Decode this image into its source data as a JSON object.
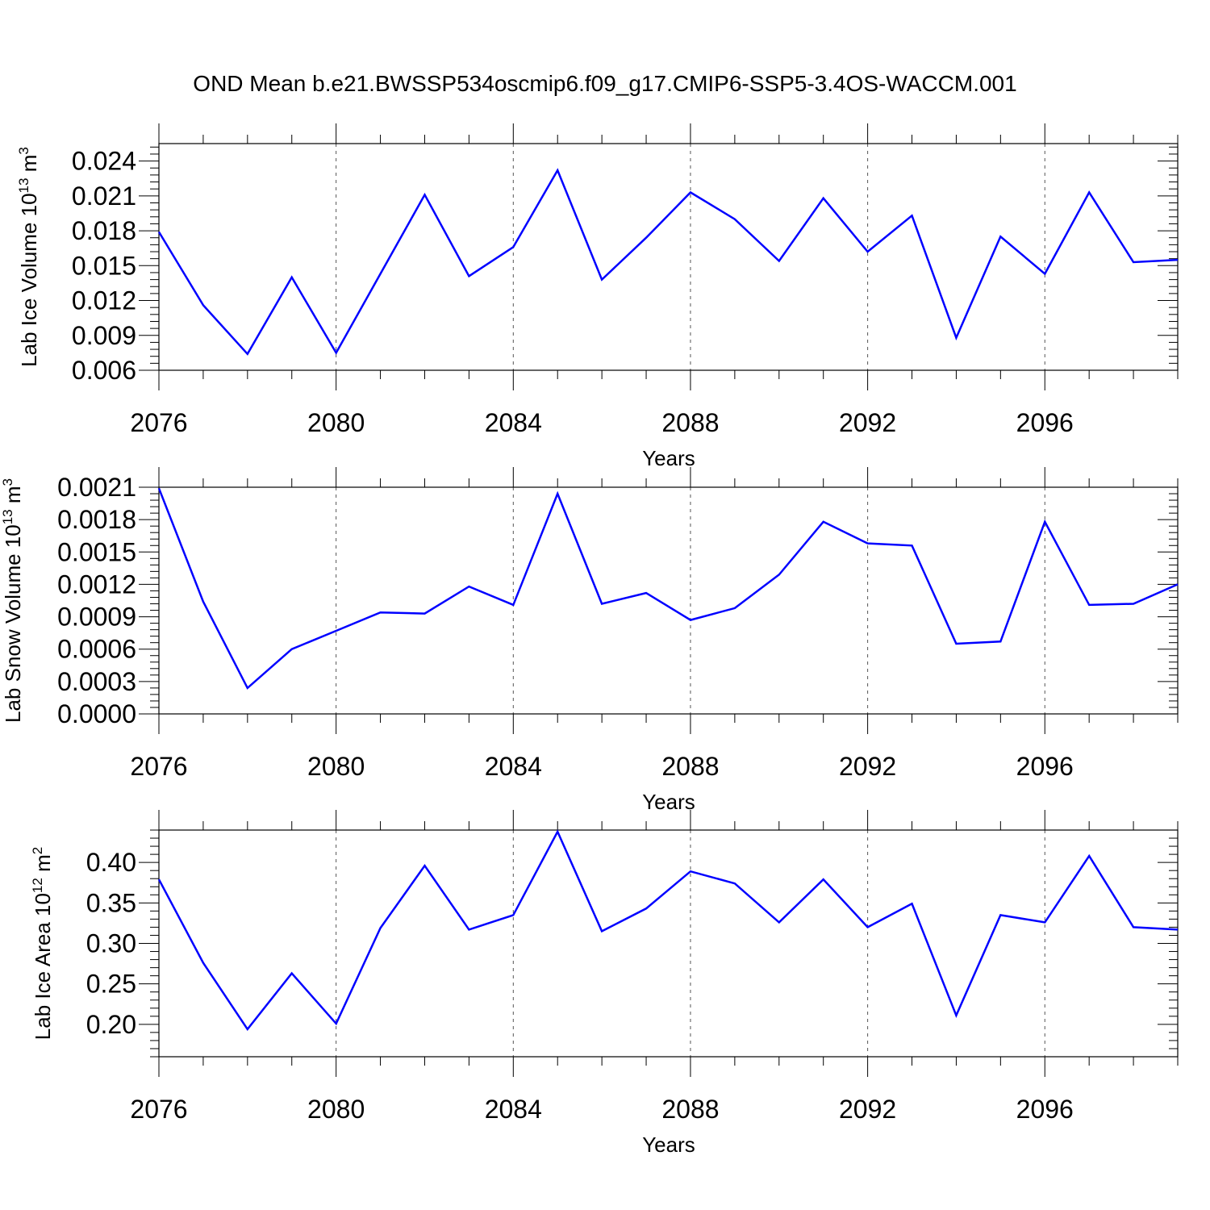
{
  "title": "OND Mean b.e21.BWSSP534oscmip6.f09_g17.CMIP6-SSP5-3.4OS-WACCM.001",
  "colors": {
    "line": "#0000ff",
    "axis": "#000000",
    "grid": "#555555"
  },
  "chart_data": [
    {
      "type": "line",
      "ylabel": "Lab Ice Volume 10^13 m^3",
      "ylabel_parts": {
        "base": "Lab Ice Volume 10",
        "exp1": "13",
        "mid": " m",
        "exp2": "3"
      },
      "xlabel": "Years",
      "xlim": [
        2076,
        2099
      ],
      "ylim": [
        0.006,
        0.0255
      ],
      "xticks": [
        2076,
        2080,
        2084,
        2088,
        2092,
        2096
      ],
      "xtick_labels": [
        "2076",
        "2080",
        "2084",
        "2088",
        "2092",
        "2096"
      ],
      "yticks": [
        0.006,
        0.009,
        0.012,
        0.015,
        0.018,
        0.021,
        0.024
      ],
      "ytick_labels": [
        "0.006",
        "0.009",
        "0.012",
        "0.015",
        "0.018",
        "0.021",
        "0.024"
      ],
      "grid": "vertical dashed at major x ticks",
      "x": [
        2076,
        2077,
        2078,
        2079,
        2080,
        2081,
        2082,
        2083,
        2084,
        2085,
        2086,
        2087,
        2088,
        2089,
        2090,
        2091,
        2092,
        2093,
        2094,
        2095,
        2096,
        2097,
        2098,
        2099
      ],
      "series": [
        {
          "values": [
            0.0179,
            0.0116,
            0.0074,
            0.014,
            0.0075,
            0.0143,
            0.0211,
            0.0141,
            0.0166,
            0.0232,
            0.0138,
            0.0174,
            0.0213,
            0.019,
            0.0154,
            0.0208,
            0.0162,
            0.0193,
            0.0088,
            0.0175,
            0.0143,
            0.0213,
            0.0153,
            0.0155
          ]
        }
      ]
    },
    {
      "type": "line",
      "ylabel": "Lab Snow Volume 10^13 m^3",
      "ylabel_parts": {
        "base": "Lab Snow Volume 10",
        "exp1": "13",
        "mid": " m",
        "exp2": "3"
      },
      "xlabel": "Years",
      "xlim": [
        2076,
        2099
      ],
      "ylim": [
        0.0,
        0.0021
      ],
      "xticks": [
        2076,
        2080,
        2084,
        2088,
        2092,
        2096
      ],
      "xtick_labels": [
        "2076",
        "2080",
        "2084",
        "2088",
        "2092",
        "2096"
      ],
      "yticks": [
        0.0,
        0.0003,
        0.0006,
        0.0009,
        0.0012,
        0.0015,
        0.0018,
        0.0021
      ],
      "ytick_labels": [
        "0.0000",
        "0.0003",
        "0.0006",
        "0.0009",
        "0.0012",
        "0.0015",
        "0.0018",
        "0.0021"
      ],
      "grid": "vertical dashed at major x ticks",
      "x": [
        2076,
        2077,
        2078,
        2079,
        2080,
        2081,
        2082,
        2083,
        2084,
        2085,
        2086,
        2087,
        2088,
        2089,
        2090,
        2091,
        2092,
        2093,
        2094,
        2095,
        2096,
        2097,
        2098,
        2099
      ],
      "series": [
        {
          "values": [
            0.00209,
            0.00104,
            0.00024,
            0.0006,
            0.00077,
            0.00094,
            0.00093,
            0.00118,
            0.00101,
            0.00204,
            0.00102,
            0.00112,
            0.00087,
            0.00098,
            0.00129,
            0.00178,
            0.00158,
            0.00156,
            0.00065,
            0.00067,
            0.00178,
            0.00101,
            0.00102,
            0.0012
          ]
        }
      ]
    },
    {
      "type": "line",
      "ylabel": "Lab Ice Area 10^12 m^2",
      "ylabel_parts": {
        "base": "Lab Ice Area 10",
        "exp1": "12",
        "mid": " m",
        "exp2": "2"
      },
      "xlabel": "Years",
      "xlim": [
        2076,
        2099
      ],
      "ylim": [
        0.16,
        0.44
      ],
      "xticks": [
        2076,
        2080,
        2084,
        2088,
        2092,
        2096
      ],
      "xtick_labels": [
        "2076",
        "2080",
        "2084",
        "2088",
        "2092",
        "2096"
      ],
      "yticks": [
        0.2,
        0.25,
        0.3,
        0.35,
        0.4
      ],
      "ytick_labels": [
        "0.20",
        "0.25",
        "0.30",
        "0.35",
        "0.40"
      ],
      "grid": "vertical dashed at major x ticks",
      "x": [
        2076,
        2077,
        2078,
        2079,
        2080,
        2081,
        2082,
        2083,
        2084,
        2085,
        2086,
        2087,
        2088,
        2089,
        2090,
        2091,
        2092,
        2093,
        2094,
        2095,
        2096,
        2097,
        2098,
        2099
      ],
      "series": [
        {
          "values": [
            0.379,
            0.276,
            0.194,
            0.263,
            0.201,
            0.319,
            0.396,
            0.317,
            0.335,
            0.438,
            0.315,
            0.343,
            0.389,
            0.374,
            0.326,
            0.379,
            0.32,
            0.349,
            0.211,
            0.335,
            0.326,
            0.408,
            0.32,
            0.317
          ]
        }
      ]
    }
  ]
}
